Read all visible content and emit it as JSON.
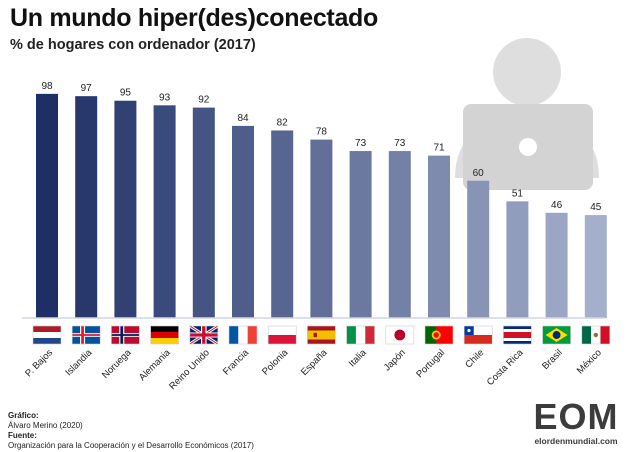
{
  "header": {
    "title": "Un mundo hiper(des)conectado",
    "subtitle": "% de hogares con ordenador (2017)"
  },
  "chart_data": {
    "type": "bar",
    "title": "Un mundo hiper(des)conectado",
    "subtitle": "% de hogares con ordenador (2017)",
    "categories": [
      "P. Bajos",
      "Islandia",
      "Noruega",
      "Alemania",
      "Reino Unido",
      "Francia",
      "Polonia",
      "España",
      "Italia",
      "Japón",
      "Portugal",
      "Chile",
      "Costa Rica",
      "Brasil",
      "México"
    ],
    "values": [
      98,
      97,
      95,
      93,
      92,
      84,
      82,
      78,
      73,
      73,
      71,
      60,
      51,
      46,
      45
    ],
    "ylim": [
      0,
      100
    ],
    "grid": false,
    "legend": "none",
    "bar_color_start": "#1e2f66",
    "bar_color_end": "#a4afcb"
  },
  "flags": [
    "netherlands-flag",
    "iceland-flag",
    "norway-flag",
    "germany-flag",
    "uk-flag",
    "france-flag",
    "poland-flag",
    "spain-flag",
    "italy-flag",
    "japan-flag",
    "portugal-flag",
    "chile-flag",
    "costa-rica-flag",
    "brazil-flag",
    "mexico-flag"
  ],
  "footer": {
    "grafico_label": "Gráfico:",
    "grafico_value": "Álvaro Merino (2020)",
    "fuente_label": "Fuente:",
    "fuente_value": "Organización para la Cooperación y el Desarrollo Económicos (2017)"
  },
  "logo": {
    "word": "EOM",
    "url": "elordenmundial.com"
  }
}
